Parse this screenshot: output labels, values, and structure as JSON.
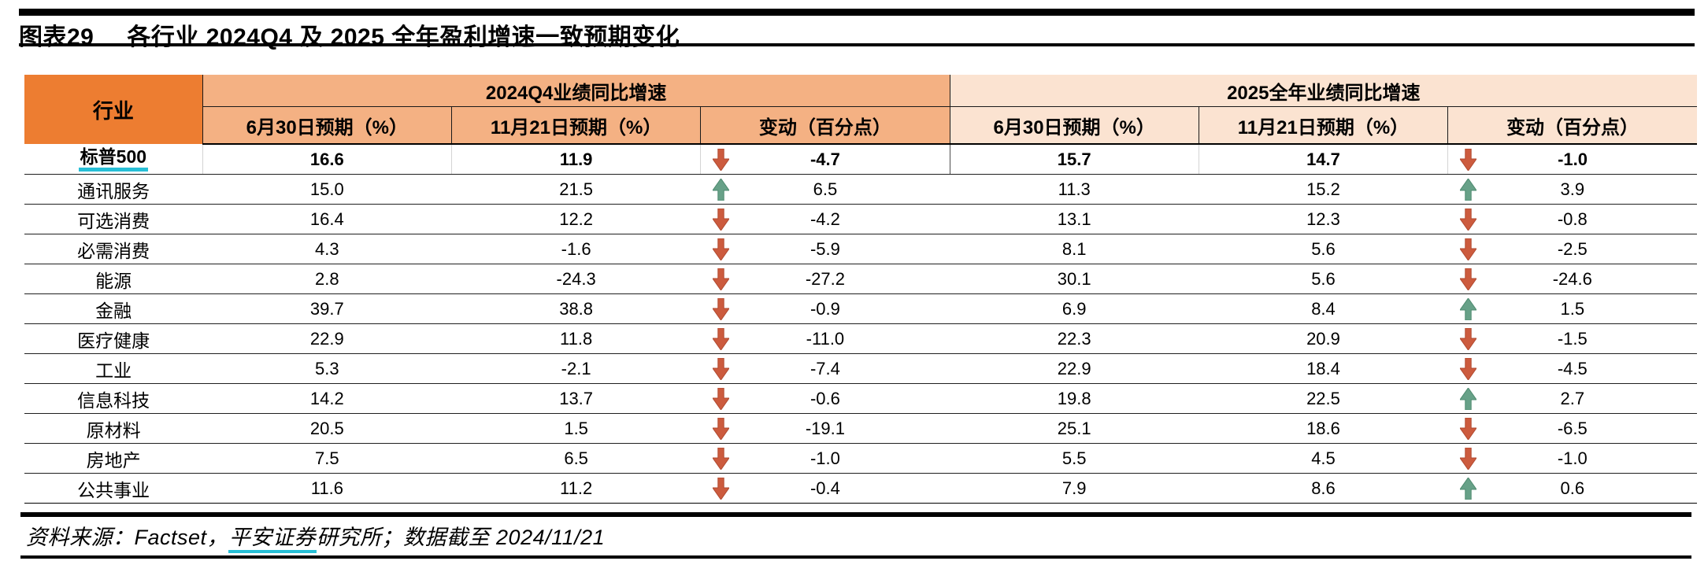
{
  "title": {
    "label": "图表29",
    "text": "各行业 2024Q4 及 2025 全年盈利增速一致预期变化"
  },
  "table": {
    "industry_header": "行业",
    "groups": [
      {
        "title": "2024Q4业绩同比增速",
        "subheaders": [
          "6月30日预期（%）",
          "11月21日预期（%）",
          "变动（百分点）"
        ]
      },
      {
        "title": "2025全年业绩同比增速",
        "subheaders": [
          "6月30日预期（%）",
          "11月21日预期（%）",
          "变动（百分点）"
        ]
      }
    ],
    "rows": [
      {
        "industry": "标普500",
        "bold": true,
        "underline": true,
        "q4_jun": "16.6",
        "q4_nov": "11.9",
        "q4_dir": "down",
        "q4_chg": "-4.7",
        "fy_jun": "15.7",
        "fy_nov": "14.7",
        "fy_dir": "down",
        "fy_chg": "-1.0"
      },
      {
        "industry": "通讯服务",
        "q4_jun": "15.0",
        "q4_nov": "21.5",
        "q4_dir": "up",
        "q4_chg": "6.5",
        "fy_jun": "11.3",
        "fy_nov": "15.2",
        "fy_dir": "up",
        "fy_chg": "3.9"
      },
      {
        "industry": "可选消费",
        "q4_jun": "16.4",
        "q4_nov": "12.2",
        "q4_dir": "down",
        "q4_chg": "-4.2",
        "fy_jun": "13.1",
        "fy_nov": "12.3",
        "fy_dir": "down",
        "fy_chg": "-0.8"
      },
      {
        "industry": "必需消费",
        "q4_jun": "4.3",
        "q4_nov": "-1.6",
        "q4_dir": "down",
        "q4_chg": "-5.9",
        "fy_jun": "8.1",
        "fy_nov": "5.6",
        "fy_dir": "down",
        "fy_chg": "-2.5"
      },
      {
        "industry": "能源",
        "q4_jun": "2.8",
        "q4_nov": "-24.3",
        "q4_dir": "down",
        "q4_chg": "-27.2",
        "fy_jun": "30.1",
        "fy_nov": "5.6",
        "fy_dir": "down",
        "fy_chg": "-24.6"
      },
      {
        "industry": "金融",
        "q4_jun": "39.7",
        "q4_nov": "38.8",
        "q4_dir": "down",
        "q4_chg": "-0.9",
        "fy_jun": "6.9",
        "fy_nov": "8.4",
        "fy_dir": "up",
        "fy_chg": "1.5"
      },
      {
        "industry": "医疗健康",
        "q4_jun": "22.9",
        "q4_nov": "11.8",
        "q4_dir": "down",
        "q4_chg": "-11.0",
        "fy_jun": "22.3",
        "fy_nov": "20.9",
        "fy_dir": "down",
        "fy_chg": "-1.5"
      },
      {
        "industry": "工业",
        "q4_jun": "5.3",
        "q4_nov": "-2.1",
        "q4_dir": "down",
        "q4_chg": "-7.4",
        "fy_jun": "22.9",
        "fy_nov": "18.4",
        "fy_dir": "down",
        "fy_chg": "-4.5"
      },
      {
        "industry": "信息科技",
        "q4_jun": "14.2",
        "q4_nov": "13.7",
        "q4_dir": "down",
        "q4_chg": "-0.6",
        "fy_jun": "19.8",
        "fy_nov": "22.5",
        "fy_dir": "up",
        "fy_chg": "2.7"
      },
      {
        "industry": "原材料",
        "q4_jun": "20.5",
        "q4_nov": "1.5",
        "q4_dir": "down",
        "q4_chg": "-19.1",
        "fy_jun": "25.1",
        "fy_nov": "18.6",
        "fy_dir": "down",
        "fy_chg": "-6.5"
      },
      {
        "industry": "房地产",
        "q4_jun": "7.5",
        "q4_nov": "6.5",
        "q4_dir": "down",
        "q4_chg": "-1.0",
        "fy_jun": "5.5",
        "fy_nov": "4.5",
        "fy_dir": "down",
        "fy_chg": "-1.0"
      },
      {
        "industry": "公共事业",
        "q4_jun": "11.6",
        "q4_nov": "11.2",
        "q4_dir": "down",
        "q4_chg": "-0.4",
        "fy_jun": "7.9",
        "fy_nov": "8.6",
        "fy_dir": "up",
        "fy_chg": "0.6"
      }
    ]
  },
  "footer": {
    "prefix": "资料来源：Factset，",
    "underlined": "平安证券",
    "suffix": "研究所；数据截至 2024/11/21"
  },
  "colors": {
    "industry_header_bg": "#ED7D31",
    "group_2024_bg": "#F4B183",
    "group_2025_bg": "#FBE3D1",
    "up_arrow": "#67A188",
    "up_arrow_edge": "#4E8A6F",
    "down_arrow": "#CC5B3E",
    "down_arrow_edge": "#B04A30",
    "highlight_underline": "#27BFD6"
  },
  "chart_data": {
    "type": "table",
    "title": "图表29 各行业 2024Q4 及 2025 全年盈利增速一致预期变化",
    "columns": [
      "行业",
      "2024Q4 6月30日预期（%）",
      "2024Q4 11月21日预期（%）",
      "2024Q4 变动（百分点）",
      "2025全年 6月30日预期（%）",
      "2025全年 11月21日预期（%）",
      "2025全年 变动（百分点）"
    ],
    "rows": [
      [
        "标普500",
        16.6,
        11.9,
        -4.7,
        15.7,
        14.7,
        -1.0
      ],
      [
        "通讯服务",
        15.0,
        21.5,
        6.5,
        11.3,
        15.2,
        3.9
      ],
      [
        "可选消费",
        16.4,
        12.2,
        -4.2,
        13.1,
        12.3,
        -0.8
      ],
      [
        "必需消费",
        4.3,
        -1.6,
        -5.9,
        8.1,
        5.6,
        -2.5
      ],
      [
        "能源",
        2.8,
        -24.3,
        -27.2,
        30.1,
        5.6,
        -24.6
      ],
      [
        "金融",
        39.7,
        38.8,
        -0.9,
        6.9,
        8.4,
        1.5
      ],
      [
        "医疗健康",
        22.9,
        11.8,
        -11.0,
        22.3,
        20.9,
        -1.5
      ],
      [
        "工业",
        5.3,
        -2.1,
        -7.4,
        22.9,
        18.4,
        -4.5
      ],
      [
        "信息科技",
        14.2,
        13.7,
        -0.6,
        19.8,
        22.5,
        2.7
      ],
      [
        "原材料",
        20.5,
        1.5,
        -19.1,
        25.1,
        18.6,
        -6.5
      ],
      [
        "房地产",
        7.5,
        6.5,
        -1.0,
        5.5,
        4.5,
        -1.0
      ],
      [
        "公共事业",
        11.6,
        11.2,
        -0.4,
        7.9,
        8.6,
        0.6
      ]
    ],
    "source_note": "资料来源：Factset，平安证券研究所；数据截至 2024/11/21"
  }
}
